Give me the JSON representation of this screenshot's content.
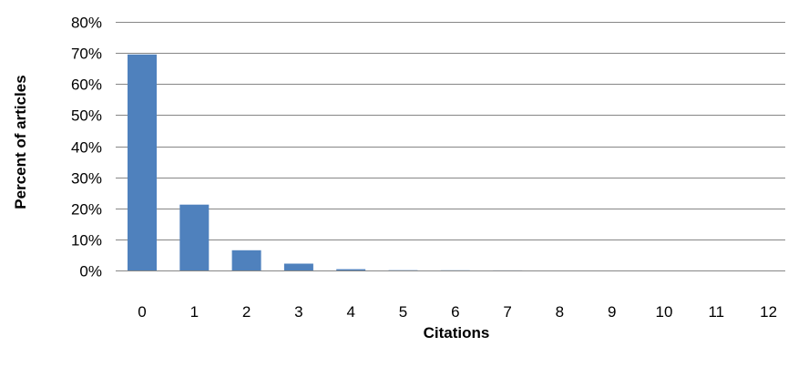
{
  "chart_data": {
    "type": "bar",
    "title": "",
    "xlabel": "Citations",
    "ylabel": "Percent of articles",
    "categories": [
      "0",
      "1",
      "2",
      "3",
      "4",
      "5",
      "6",
      "7",
      "8",
      "9",
      "10",
      "11",
      "12"
    ],
    "values": [
      69.5,
      21.2,
      6.5,
      2.2,
      0.4,
      0.1,
      0.05,
      0.02,
      0.01,
      0.01,
      0,
      0,
      0
    ],
    "ylim": [
      0,
      80
    ],
    "yticks": [
      "0%",
      "10%",
      "20%",
      "30%",
      "40%",
      "50%",
      "60%",
      "70%",
      "80%"
    ],
    "grid": true,
    "legend": "none",
    "colors": {
      "bar": "#4f81bd",
      "grid": "#868686",
      "axis": "#868686"
    }
  }
}
